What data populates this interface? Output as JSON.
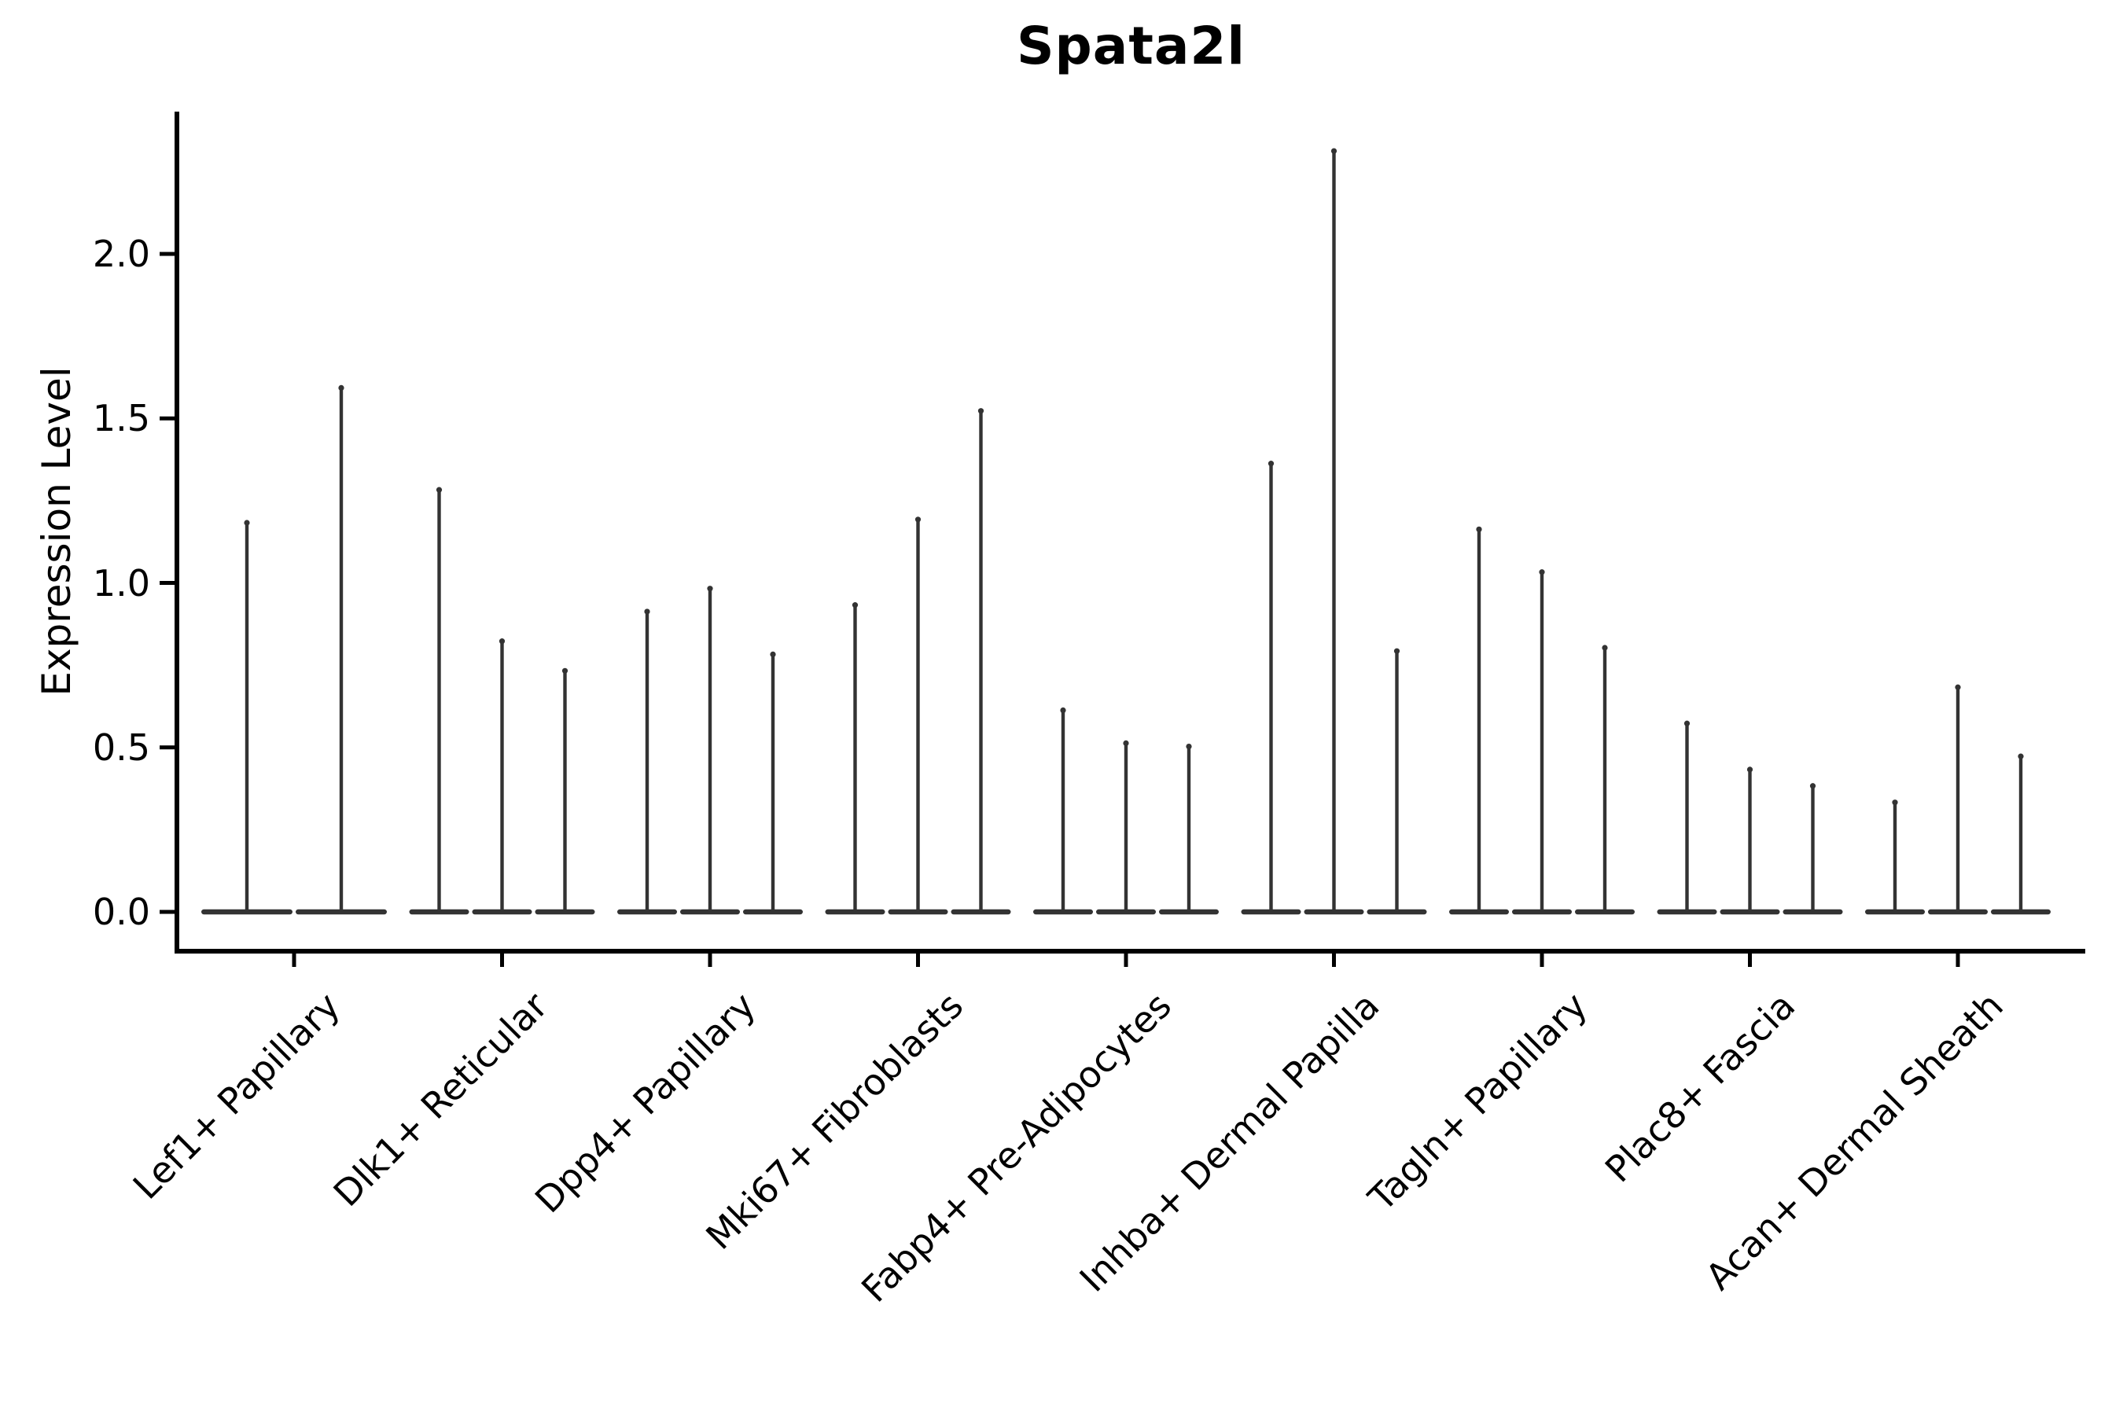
{
  "chart_data": {
    "type": "violin",
    "title": "Spata2l",
    "ylabel": "Expression Level",
    "xlabel": "",
    "ytick_labels": [
      "0.0",
      "0.5",
      "1.0",
      "1.5",
      "2.0"
    ],
    "ylim": [
      -0.12,
      2.44
    ],
    "grid": false,
    "legend": "none",
    "description": "Needle-thin violin plot of Spata2l expression; each category shows violins whose mass sits at 0 with a thin spike to the listed maximum expression value.",
    "groups": [
      {
        "label": "Lef1+ Papillary",
        "violins": [
          1.19,
          1.6
        ]
      },
      {
        "label": "Dlk1+ Reticular",
        "violins": [
          1.29,
          0.83,
          0.74
        ]
      },
      {
        "label": "Dpp4+ Papillary",
        "violins": [
          0.92,
          0.99,
          0.79
        ]
      },
      {
        "label": "Mki67+ Fibroblasts",
        "violins": [
          0.94,
          1.2,
          1.53
        ]
      },
      {
        "label": "Fabp4+ Pre-Adipocytes",
        "violins": [
          0.62,
          0.52,
          0.51
        ]
      },
      {
        "label": "Inhba+ Dermal Papilla",
        "violins": [
          1.37,
          2.32,
          0.8
        ]
      },
      {
        "label": "Tagln+ Papillary",
        "violins": [
          1.17,
          1.04,
          0.81
        ]
      },
      {
        "label": "Plac8+ Fascia",
        "violins": [
          0.58,
          0.44,
          0.39
        ]
      },
      {
        "label": "Acan+ Dermal Sheath",
        "violins": [
          0.34,
          0.69,
          0.48
        ]
      }
    ],
    "colors": {
      "violin": "#333333",
      "axis": "#000000",
      "background": "#ffffff"
    }
  }
}
